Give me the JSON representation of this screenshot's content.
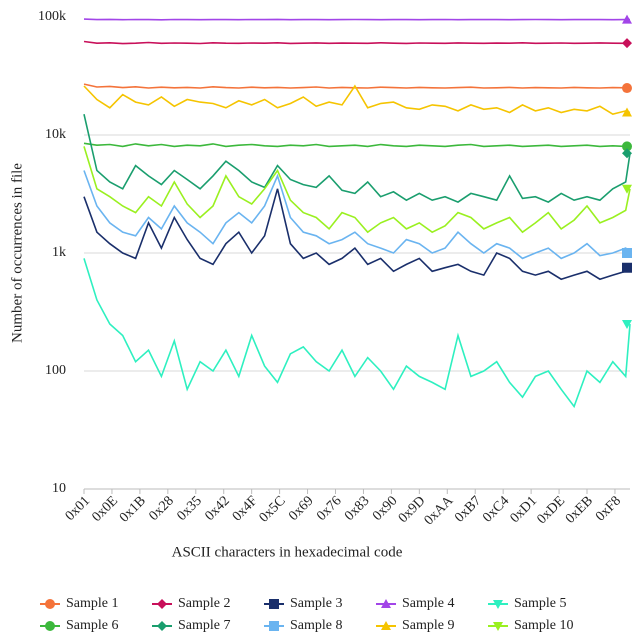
{
  "chart_data": {
    "type": "line",
    "xlabel": "ASCII characters in hexadecimal code",
    "ylabel": "Number of occurrences in file",
    "x": [
      1,
      7,
      13,
      19,
      25,
      31,
      37,
      43,
      49,
      55,
      61,
      67,
      73,
      79,
      85,
      91,
      97,
      103,
      109,
      115,
      121,
      127,
      133,
      139,
      145,
      151,
      157,
      163,
      169,
      175,
      181,
      187,
      193,
      199,
      205,
      211,
      217,
      223,
      229,
      235,
      241,
      247,
      253,
      255
    ],
    "xlim": [
      1,
      255
    ],
    "xticks": [
      {
        "value": 1,
        "label": "0x01"
      },
      {
        "value": 14,
        "label": "0x0E"
      },
      {
        "value": 27,
        "label": "0x1B"
      },
      {
        "value": 40,
        "label": "0x28"
      },
      {
        "value": 53,
        "label": "0x35"
      },
      {
        "value": 66,
        "label": "0x42"
      },
      {
        "value": 79,
        "label": "0x4F"
      },
      {
        "value": 92,
        "label": "0x5C"
      },
      {
        "value": 105,
        "label": "0x69"
      },
      {
        "value": 118,
        "label": "0x76"
      },
      {
        "value": 131,
        "label": "0x83"
      },
      {
        "value": 144,
        "label": "0x90"
      },
      {
        "value": 157,
        "label": "0x9D"
      },
      {
        "value": 170,
        "label": "0xAA"
      },
      {
        "value": 183,
        "label": "0xB7"
      },
      {
        "value": 196,
        "label": "0xC4"
      },
      {
        "value": 209,
        "label": "0xD1"
      },
      {
        "value": 222,
        "label": "0xDE"
      },
      {
        "value": 235,
        "label": "0xEB"
      },
      {
        "value": 248,
        "label": "0xF8"
      }
    ],
    "ylim": [
      10,
      100000
    ],
    "yticks": [
      10,
      100,
      {
        "value": 1000,
        "label": "1k"
      },
      {
        "value": 10000,
        "label": "10k"
      },
      {
        "value": 100000,
        "label": "100k"
      }
    ],
    "log_y": true,
    "grid": true,
    "legend": "bottom",
    "series": [
      {
        "name": "Sample 1",
        "color": "#f4733a",
        "marker": "circle",
        "values": [
          27000,
          25500,
          25800,
          25200,
          25600,
          25000,
          25400,
          25100,
          25300,
          25000,
          25600,
          25200,
          25000,
          25400,
          25100,
          25300,
          25000,
          25200,
          25500,
          25000,
          25300,
          25100,
          25000,
          25400,
          25200,
          25000,
          25300,
          25100,
          25000,
          25200,
          25400,
          25000,
          25100,
          25300,
          25000,
          25200,
          25100,
          25000,
          25300,
          25100,
          25000,
          25200,
          25100,
          25000
        ]
      },
      {
        "name": "Sample 2",
        "color": "#c8105a",
        "marker": "diamond",
        "values": [
          62000,
          60000,
          60500,
          59500,
          60000,
          60800,
          59800,
          60200,
          60000,
          59600,
          60400,
          60000,
          59800,
          60200,
          60000,
          60500,
          59700,
          60000,
          60300,
          59900,
          60100,
          60000,
          59800,
          60400,
          60000,
          59700,
          60200,
          60000,
          59900,
          60300,
          60000,
          59800,
          60100,
          60000,
          60400,
          59900,
          60000,
          60200,
          59800,
          60000,
          60300,
          60000,
          59900,
          60000
        ]
      },
      {
        "name": "Sample 3",
        "color": "#1a2f6b",
        "marker": "square",
        "values": [
          3000,
          1500,
          1200,
          1000,
          900,
          1800,
          1100,
          2000,
          1300,
          900,
          800,
          1200,
          1500,
          1000,
          1400,
          3500,
          1200,
          900,
          1000,
          800,
          900,
          1100,
          800,
          900,
          700,
          800,
          900,
          700,
          750,
          800,
          700,
          650,
          1000,
          900,
          700,
          650,
          700,
          600,
          650,
          700,
          600,
          650,
          700,
          750
        ]
      },
      {
        "name": "Sample 4",
        "color": "#a245e8",
        "marker": "triangle-up",
        "values": [
          96000,
          95000,
          95500,
          94800,
          95200,
          95000,
          94600,
          95300,
          95000,
          94900,
          95100,
          95000,
          94800,
          95200,
          95000,
          95400,
          94900,
          95000,
          95100,
          94800,
          95000,
          95200,
          95000,
          94900,
          95100,
          95000,
          94800,
          95000,
          95200,
          94900,
          95000,
          95100,
          95000,
          94800,
          95000,
          95200,
          95000,
          94900,
          95000,
          95100,
          95000,
          94900,
          95000,
          95000
        ]
      },
      {
        "name": "Sample 5",
        "color": "#2ef0c0",
        "marker": "triangle-down",
        "values": [
          900,
          400,
          250,
          200,
          120,
          150,
          90,
          180,
          70,
          120,
          100,
          150,
          90,
          200,
          110,
          80,
          140,
          160,
          120,
          100,
          150,
          90,
          130,
          100,
          70,
          110,
          90,
          80,
          70,
          200,
          90,
          100,
          120,
          80,
          60,
          90,
          100,
          70,
          50,
          100,
          80,
          120,
          90,
          250
        ]
      },
      {
        "name": "Sample 6",
        "color": "#3cb83c",
        "marker": "circle",
        "values": [
          8500,
          8200,
          8300,
          8000,
          8400,
          8100,
          8300,
          8000,
          8200,
          8100,
          8400,
          8000,
          8200,
          8300,
          8100,
          8000,
          8200,
          8100,
          8300,
          8000,
          8100,
          8200,
          8000,
          8300,
          8100,
          8000,
          8200,
          8100,
          8000,
          8200,
          8300,
          8000,
          8100,
          8200,
          8000,
          8100,
          8200,
          8000,
          8100,
          8200,
          8000,
          8100,
          8000,
          8000
        ]
      },
      {
        "name": "Sample 7",
        "color": "#1a9e6e",
        "marker": "diamond",
        "values": [
          15000,
          5000,
          4000,
          3500,
          5500,
          4500,
          3800,
          5000,
          4200,
          3500,
          4500,
          6000,
          5000,
          4000,
          3600,
          5500,
          4200,
          3800,
          3600,
          4500,
          3400,
          3200,
          4000,
          3000,
          3300,
          2800,
          3200,
          2800,
          3000,
          2700,
          3200,
          3000,
          2800,
          4500,
          2900,
          3000,
          2700,
          3200,
          2800,
          3000,
          2800,
          3500,
          4000,
          7000
        ]
      },
      {
        "name": "Sample 8",
        "color": "#6ab4f0",
        "marker": "square",
        "values": [
          5000,
          2500,
          1800,
          1500,
          1400,
          2000,
          1600,
          2500,
          1800,
          1500,
          1200,
          1800,
          2200,
          1800,
          2500,
          4500,
          2000,
          1500,
          1400,
          1200,
          1300,
          1500,
          1200,
          1100,
          1000,
          1300,
          1200,
          1000,
          1100,
          1500,
          1200,
          1000,
          1200,
          1100,
          900,
          1000,
          1100,
          900,
          1000,
          1200,
          950,
          1000,
          1100,
          1000
        ]
      },
      {
        "name": "Sample 9",
        "color": "#f5c400",
        "marker": "triangle-up",
        "values": [
          26000,
          20000,
          17000,
          22000,
          19000,
          18000,
          21000,
          17500,
          20000,
          19000,
          18500,
          17000,
          19500,
          18000,
          20000,
          17000,
          18500,
          21000,
          17500,
          19000,
          18000,
          26000,
          17000,
          18500,
          19000,
          17000,
          16500,
          18000,
          17500,
          16000,
          18000,
          16500,
          17000,
          15500,
          18000,
          16000,
          17000,
          15500,
          16500,
          16000,
          17500,
          15000,
          16000,
          15500
        ]
      },
      {
        "name": "Sample 10",
        "color": "#9af020",
        "marker": "triangle-down",
        "values": [
          8000,
          3500,
          3000,
          2500,
          2200,
          3000,
          2500,
          4000,
          2600,
          2000,
          2500,
          4500,
          3000,
          2600,
          3500,
          5000,
          2800,
          2200,
          2000,
          1600,
          2200,
          2000,
          1500,
          1800,
          2000,
          1600,
          1800,
          1500,
          1700,
          2200,
          2000,
          1600,
          1800,
          2000,
          1500,
          1800,
          2200,
          1600,
          1900,
          2500,
          1800,
          2000,
          2300,
          3500
        ]
      }
    ]
  }
}
